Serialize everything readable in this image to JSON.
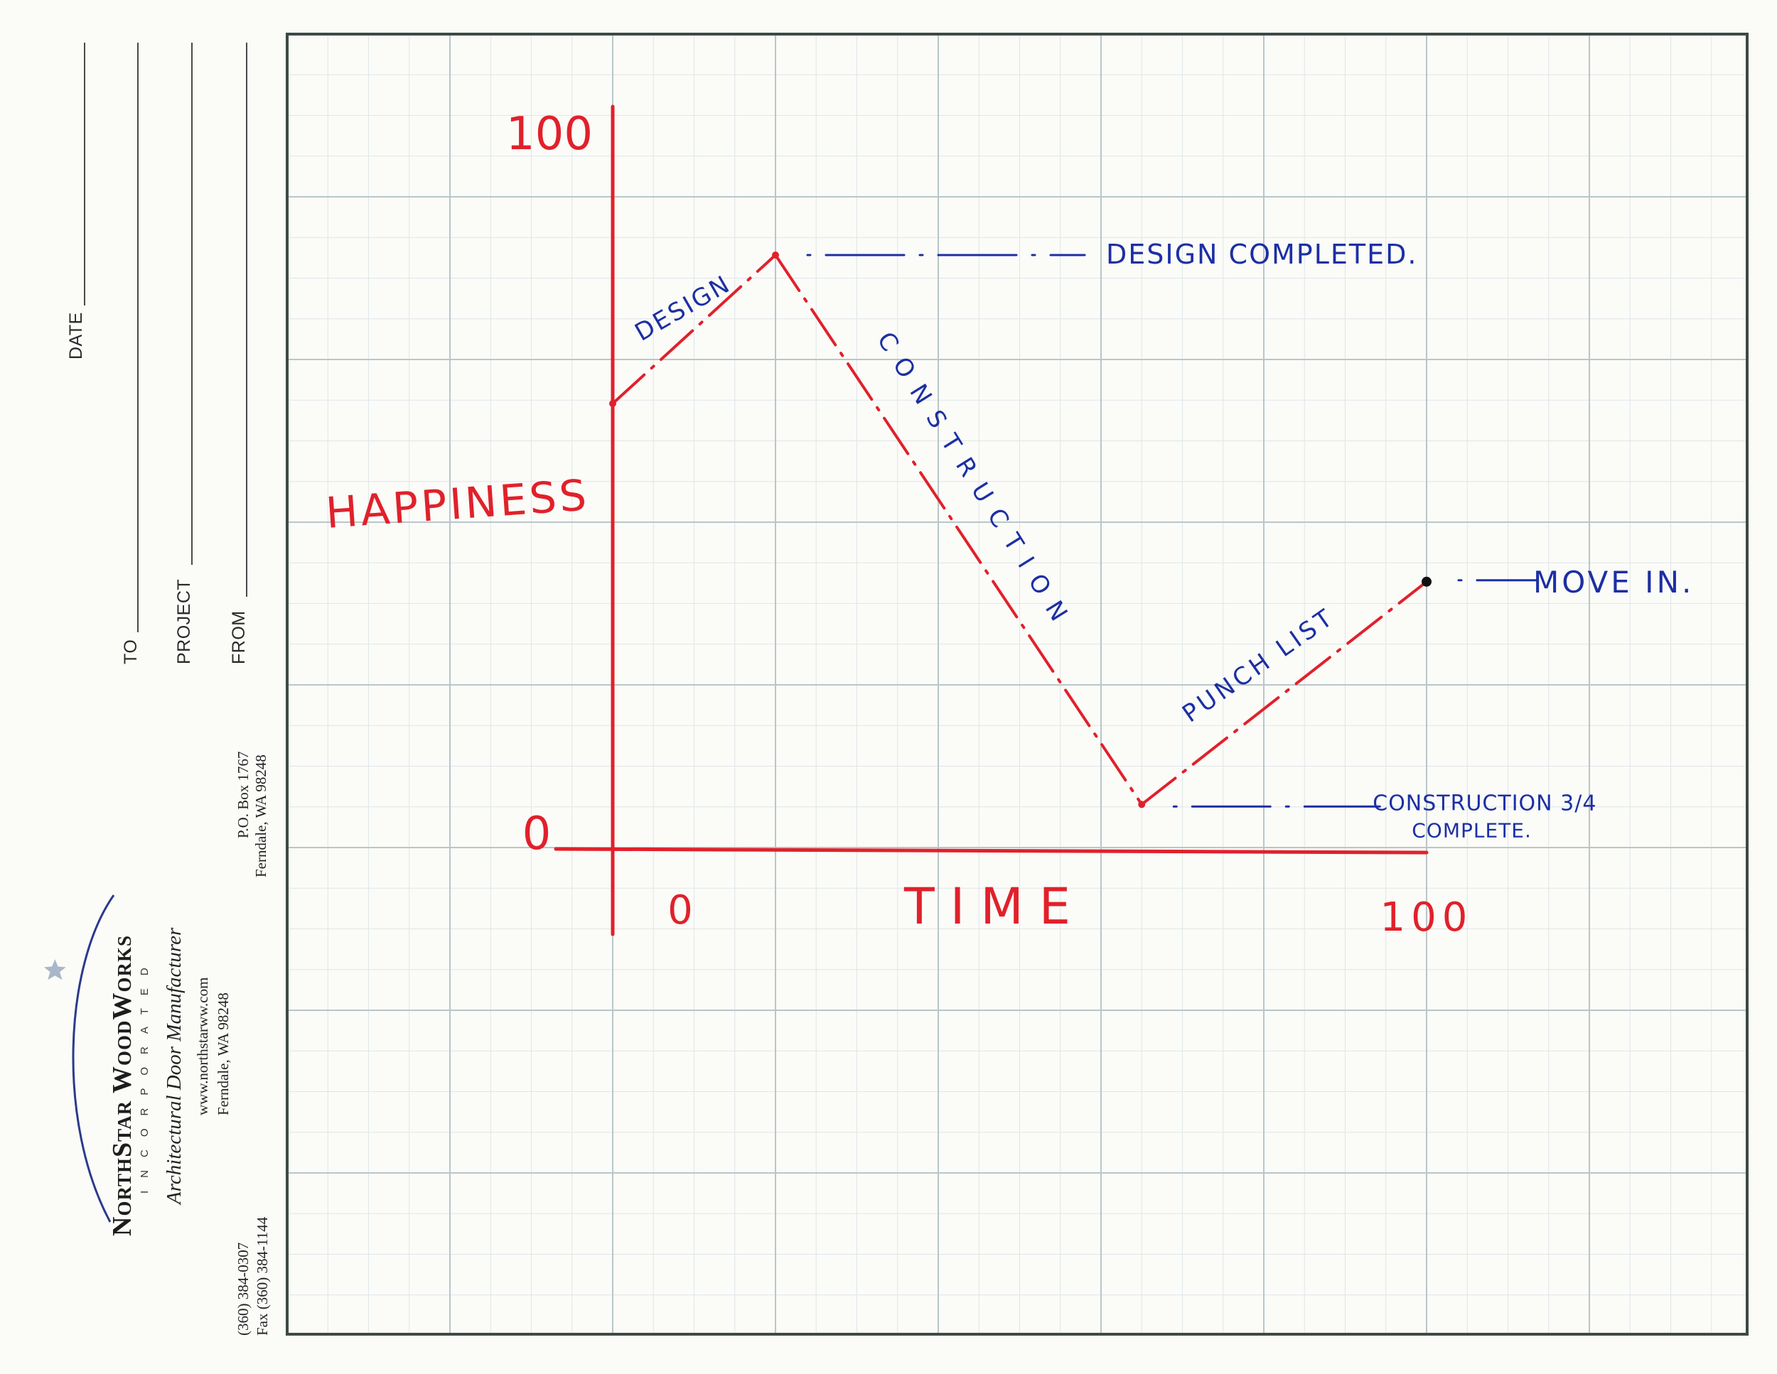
{
  "form": {
    "date_label": "DATE",
    "to_label": "TO",
    "project_label": "PROJECT",
    "from_label": "FROM"
  },
  "company": {
    "name": "NorthStar WoodWorks",
    "incorporated": "INCORPORATED",
    "tagline": "Architectural Door Manufacturer",
    "website": "www.northstarww.com",
    "city": "Ferndale, WA 98248",
    "po_box": "P.O. Box 1767",
    "po_city": "Ferndale, WA 98248",
    "phone": "(360) 384-0307",
    "fax": "Fax (360) 384-1144",
    "logo_icon": "star-swoosh-icon"
  },
  "colors": {
    "ink_red": "#e0212b",
    "ink_blue": "#1c2fa3",
    "grid": "#b9c6c9",
    "grid_minor": "#dfe6e7",
    "border": "#3d4a45"
  },
  "chart_data": {
    "type": "line",
    "title": "",
    "xlabel": "TIME",
    "ylabel": "HAPPINESS",
    "xlim": [
      0,
      100
    ],
    "ylim": [
      0,
      100
    ],
    "x_tick_labels": [
      "0",
      "100"
    ],
    "y_tick_labels": [
      "0",
      "100"
    ],
    "grid": true,
    "series": [
      {
        "values_xy": [
          [
            0,
            60
          ],
          [
            20,
            80
          ],
          [
            65,
            6
          ],
          [
            100,
            36
          ]
        ]
      }
    ],
    "segment_labels": [
      {
        "text": "DESIGN",
        "x": 10,
        "y": 70
      },
      {
        "text": "CONSTRUCTION",
        "x": 42,
        "y": 46
      },
      {
        "text": "PUNCH LIST",
        "x": 83,
        "y": 21
      }
    ],
    "annotations": [
      {
        "text": "DESIGN COMPLETED.",
        "x": 20,
        "y": 80
      },
      {
        "text": "CONSTRUCTION 3/4",
        "x": 65,
        "y": 6
      },
      {
        "text": "COMPLETE.",
        "x": 65,
        "y": 6
      },
      {
        "text": "MOVE IN.",
        "x": 100,
        "y": 36
      }
    ]
  }
}
